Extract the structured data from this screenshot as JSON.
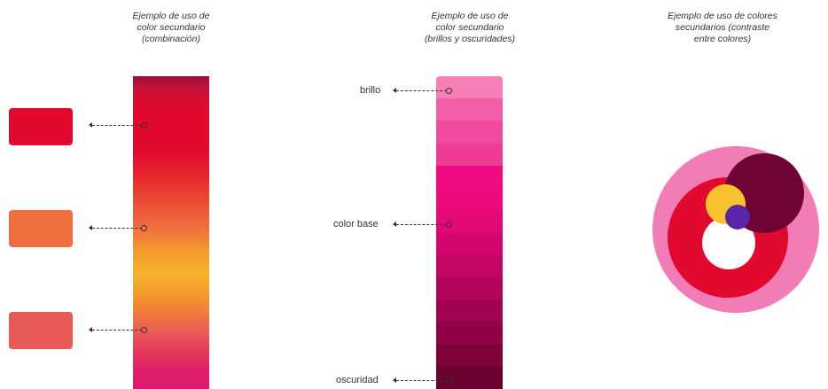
{
  "section_left": {
    "caption": [
      "Ejemplo de uso de",
      "color secundario",
      "(combinación)"
    ],
    "swatches": [
      "#e2092e",
      "#ef6e3f",
      "#e85a56"
    ]
  },
  "section_middle": {
    "caption": [
      "Ejemplo de uso de",
      "color secundario",
      "(brillos y oscuridades)"
    ],
    "labels": {
      "highlight": "brillo",
      "base": "color base",
      "shadow": "oscuridad"
    },
    "shades": [
      "#f480b6",
      "#f25ea6",
      "#ef4b9c",
      "#ed3c92",
      "#f10a81",
      "#ec0a7c",
      "#e20876",
      "#d3066e",
      "#c30563",
      "#b20459",
      "#a0034f",
      "#8f0344",
      "#7c0238",
      "#69022e"
    ]
  },
  "section_right": {
    "caption": [
      "Ejemplo de uso de colores",
      "secundarios (contraste",
      "entre colores)"
    ],
    "colors": {
      "outer": "#f27cb5",
      "red_ring": "#e2092e",
      "inner": "#ffffff",
      "maroon": "#6e0334",
      "yellow": "#f9c22e",
      "purple": "#5a26a8"
    }
  }
}
